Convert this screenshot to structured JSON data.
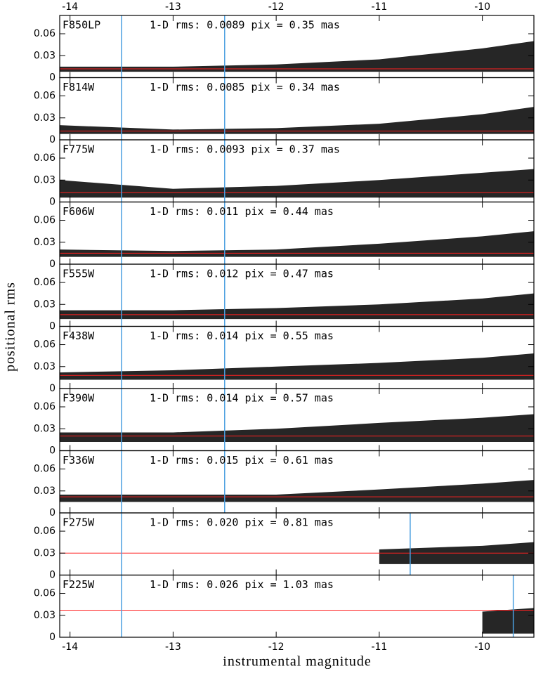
{
  "chart_data": {
    "type": "scatter",
    "x_label": "instrumental magnitude",
    "y_label": "positional rms",
    "xlim": [
      -14.1,
      -9.5
    ],
    "xticks": [
      -14,
      -13,
      -12,
      -11,
      -10
    ],
    "ylim": [
      0,
      0.085
    ],
    "yticks": [
      0,
      0.03,
      0.06
    ],
    "x": [
      -14.1,
      -13,
      -12,
      -11,
      -10,
      -9.5
    ],
    "point_color": "#000000",
    "hline_color": "#ff2020",
    "vline_color": "#4a9fe0",
    "panels": [
      {
        "filter": "F850LP",
        "annotation": "1-D rms: 0.0089 pix = 0.35 mas",
        "hline": 0.012,
        "vlines": [
          -13.5,
          -12.5
        ],
        "upper": [
          0.015,
          0.015,
          0.018,
          0.025,
          0.04,
          0.05
        ],
        "lower": [
          0.008,
          0.008,
          0.008,
          0.008,
          0.008,
          0.008
        ]
      },
      {
        "filter": "F814W",
        "annotation": "1-D rms: 0.0085 pix = 0.34 mas",
        "hline": 0.012,
        "vlines": [
          -13.5,
          -12.5
        ],
        "upper": [
          0.02,
          0.014,
          0.016,
          0.022,
          0.035,
          0.045
        ],
        "lower": [
          0.008,
          0.008,
          0.008,
          0.008,
          0.008,
          0.008
        ]
      },
      {
        "filter": "F775W",
        "annotation": "1-D rms: 0.0093 pix = 0.37 mas",
        "hline": 0.013,
        "vlines": [
          -13.5,
          -12.5
        ],
        "upper": [
          0.03,
          0.018,
          0.022,
          0.03,
          0.04,
          0.045
        ],
        "lower": [
          0.006,
          0.006,
          0.006,
          0.006,
          0.006,
          0.006
        ]
      },
      {
        "filter": "F606W",
        "annotation": "1-D rms: 0.011 pix = 0.44 mas",
        "hline": 0.015,
        "vlines": [
          -13.5,
          -12.5
        ],
        "upper": [
          0.02,
          0.018,
          0.02,
          0.028,
          0.038,
          0.045
        ],
        "lower": [
          0.01,
          0.01,
          0.01,
          0.01,
          0.01,
          0.01
        ]
      },
      {
        "filter": "F555W",
        "annotation": "1-D rms: 0.012 pix = 0.47 mas",
        "hline": 0.016,
        "vlines": [
          -13.5,
          -12.5
        ],
        "upper": [
          0.022,
          0.022,
          0.025,
          0.03,
          0.038,
          0.045
        ],
        "lower": [
          0.01,
          0.01,
          0.01,
          0.01,
          0.01,
          0.01
        ]
      },
      {
        "filter": "F438W",
        "annotation": "1-D rms: 0.014 pix = 0.55 mas",
        "hline": 0.018,
        "vlines": [
          -13.5,
          -12.5
        ],
        "upper": [
          0.022,
          0.025,
          0.03,
          0.035,
          0.042,
          0.048
        ],
        "lower": [
          0.012,
          0.012,
          0.012,
          0.012,
          0.012,
          0.012
        ]
      },
      {
        "filter": "F390W",
        "annotation": "1-D rms: 0.014 pix = 0.57 mas",
        "hline": 0.02,
        "vlines": [
          -13.5,
          -12.5
        ],
        "upper": [
          0.025,
          0.025,
          0.03,
          0.038,
          0.045,
          0.05
        ],
        "lower": [
          0.012,
          0.012,
          0.012,
          0.012,
          0.012,
          0.012
        ]
      },
      {
        "filter": "F336W",
        "annotation": "1-D rms: 0.015 pix = 0.61 mas",
        "hline": 0.022,
        "vlines": [
          -13.5,
          -12.5
        ],
        "upper": [
          0.025,
          0.025,
          0.025,
          0.032,
          0.04,
          0.045
        ],
        "lower": [
          0.015,
          0.015,
          0.015,
          0.015,
          0.015,
          0.015
        ]
      },
      {
        "filter": "F275W",
        "annotation": "1-D rms: 0.020 pix = 0.81 mas",
        "hline": 0.03,
        "vlines": [
          -13.5,
          -10.7
        ],
        "upper": [
          null,
          null,
          null,
          0.035,
          0.04,
          0.045
        ],
        "lower": [
          null,
          null,
          null,
          0.015,
          0.015,
          0.015
        ]
      },
      {
        "filter": "F225W",
        "annotation": "1-D rms: 0.026 pix = 1.03 mas",
        "hline": 0.037,
        "vlines": [
          -13.5,
          -9.7
        ],
        "upper": [
          null,
          null,
          null,
          null,
          0.035,
          0.04
        ],
        "lower": [
          null,
          null,
          null,
          null,
          0.005,
          0.005
        ]
      }
    ]
  }
}
